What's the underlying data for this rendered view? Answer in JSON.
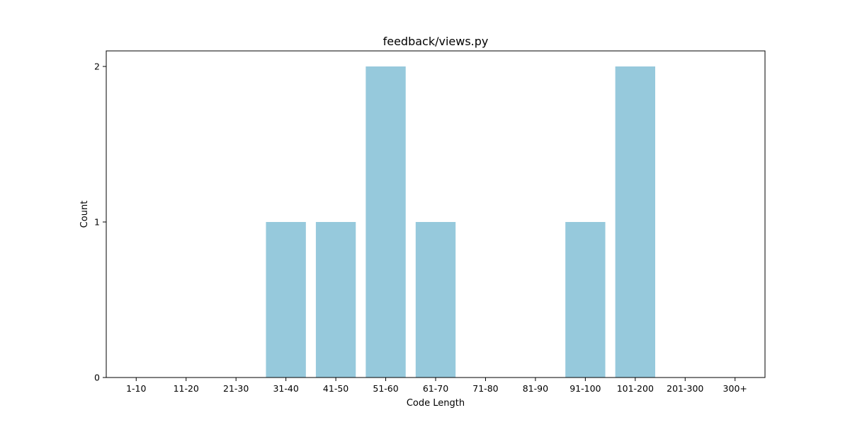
{
  "chart_data": {
    "type": "bar",
    "title": "feedback/views.py",
    "xlabel": "Code Length",
    "ylabel": "Count",
    "categories": [
      "1-10",
      "11-20",
      "21-30",
      "31-40",
      "41-50",
      "51-60",
      "61-70",
      "71-80",
      "81-90",
      "91-100",
      "101-200",
      "201-300",
      "300+"
    ],
    "values": [
      0,
      0,
      0,
      1,
      1,
      2,
      1,
      0,
      0,
      1,
      2,
      0,
      0
    ],
    "ylim": [
      0,
      2.1
    ],
    "yticks": [
      0,
      1,
      2
    ],
    "bar_color": "#96c9dc",
    "grid": false,
    "legend": "none"
  }
}
